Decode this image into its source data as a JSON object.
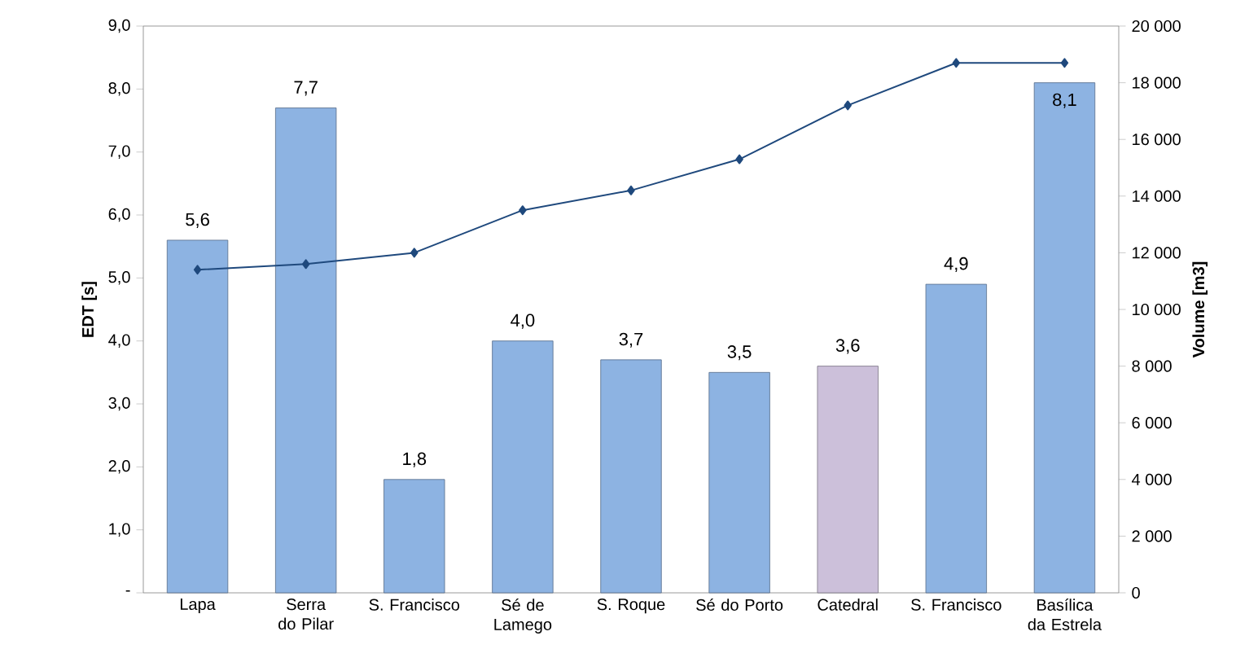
{
  "chart_data": {
    "type": "bar",
    "categories": [
      "Lapa",
      "Serra do Pilar",
      "S. Francisco",
      "Sé de Lamego",
      "S. Roque",
      "Sé do Porto",
      "Catedral",
      "S. Francisco",
      "Basílica da Estrela"
    ],
    "ylabel": "EDT [s]",
    "y2label": "Volume [m3]",
    "ylim": [
      0,
      9
    ],
    "yticks": [
      {
        "value": 0,
        "label": "-"
      },
      {
        "value": 1,
        "label": "1,0"
      },
      {
        "value": 2,
        "label": "2,0"
      },
      {
        "value": 3,
        "label": "3,0"
      },
      {
        "value": 4,
        "label": "4,0"
      },
      {
        "value": 5,
        "label": "5,0"
      },
      {
        "value": 6,
        "label": "6,0"
      },
      {
        "value": 7,
        "label": "7,0"
      },
      {
        "value": 8,
        "label": "8,0"
      },
      {
        "value": 9,
        "label": "9,0"
      }
    ],
    "y2lim": [
      0,
      20000
    ],
    "y2ticks": [
      0,
      {
        "value": 2000,
        "label": "2 000"
      },
      {
        "value": 4000,
        "label": "4 000"
      },
      {
        "value": 6000,
        "label": "6 000"
      },
      {
        "value": 8000,
        "label": "8 000"
      },
      {
        "value": 10000,
        "label": "10 000"
      },
      {
        "value": 12000,
        "label": "12 000"
      },
      {
        "value": 14000,
        "label": "14 000"
      },
      {
        "value": 16000,
        "label": "16 000"
      },
      {
        "value": 18000,
        "label": "18 000"
      },
      {
        "value": 20000,
        "label": "20 000"
      }
    ],
    "series": [
      {
        "colors": [
          "#8db3e2",
          "#8db3e2",
          "#8db3e2",
          "#8db3e2",
          "#8db3e2",
          "#8db3e2",
          "#ccc0da",
          "#8db3e2",
          "#8db3e2"
        ],
        "values": [
          5.6,
          7.7,
          1.8,
          4.0,
          3.7,
          3.5,
          3.6,
          4.9,
          8.1
        ],
        "value_labels": [
          "5,6",
          "7,7",
          "1,8",
          "4,0",
          "3,7",
          "3,5",
          "3,6",
          "4,9",
          "8,1"
        ]
      },
      {
        "type": "line",
        "axis": "y2",
        "color": "#1f497d",
        "marker": "diamond",
        "values": [
          11400,
          11600,
          12000,
          13500,
          14200,
          15300,
          17200,
          18700,
          18700
        ]
      }
    ]
  }
}
